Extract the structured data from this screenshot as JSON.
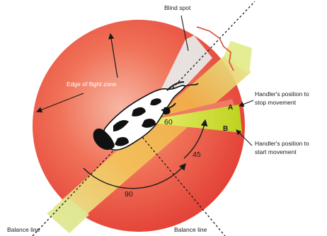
{
  "labels": {
    "blind_spot": "Blind spot",
    "edge_of_flight_zone": "Edge of flight zone",
    "handler_stop_line1": "Handler's position to",
    "handler_stop_line2": "stop movement",
    "handler_start_line1": "Handler's position to",
    "handler_start_line2": "start movement",
    "balance_line_left": "Balance line",
    "balance_line_right": "Balance line",
    "point_a": "A",
    "point_b": "B"
  },
  "angles": {
    "sixty": "60",
    "forty_five": "45",
    "ninety": "90"
  },
  "colors": {
    "flight_zone": "#e8483a",
    "flight_zone_light": "#f59a86",
    "balance_band": "#f0c850",
    "balance_band_light": "#dfe892",
    "blind_spot": "#e6e6e6",
    "handler_wedge": "#c8dc2a",
    "stop_wedge": "#f0806e",
    "bracket": "#e0483a"
  }
}
